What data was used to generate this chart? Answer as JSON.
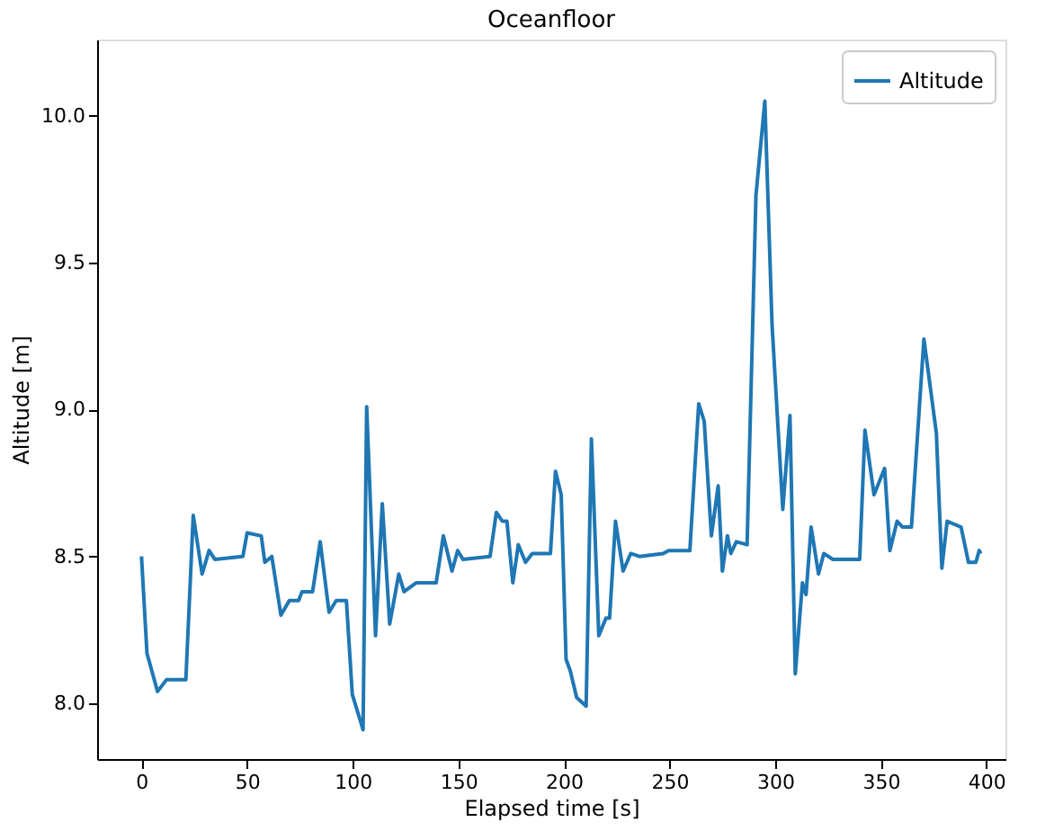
{
  "chart_data": {
    "type": "line",
    "title": "Oceanfloor",
    "xlabel": "Elapsed time [s]",
    "ylabel": "Altitude [m]",
    "x": [
      0,
      2.6,
      7.6,
      11.8,
      21,
      24.5,
      28.7,
      32,
      34.7,
      48,
      50,
      56.7,
      58.4,
      61.7,
      66,
      70,
      74.4,
      76,
      81,
      84.6,
      88.8,
      92.2,
      97,
      99.8,
      104.9,
      106.6,
      110.8,
      114,
      117.5,
      121.8,
      124.3,
      130,
      139.5,
      142.9,
      147,
      149.7,
      152.2,
      165,
      168,
      170.8,
      173,
      175.8,
      178.4,
      181.8,
      185,
      193.6,
      196,
      198.7,
      201,
      203,
      206,
      210.5,
      213,
      216.5,
      219.9,
      221.6,
      224.4,
      228,
      231.6,
      235.7,
      247,
      249.5,
      259.6,
      263.8,
      266.4,
      269.8,
      273,
      275,
      277.4,
      279,
      281.6,
      286.7,
      290.9,
      295.1,
      298.5,
      303.6,
      307,
      309.5,
      312.9,
      314.6,
      317,
      320.5,
      323,
      327.3,
      340,
      342.5,
      346.8,
      351.8,
      354.3,
      357.7,
      360.3,
      364.5,
      370.4,
      376.3,
      378.9,
      381.4,
      388,
      391.5,
      395,
      396.6,
      397.4
    ],
    "series": [
      {
        "name": "Altitude",
        "color": "#1f77b4",
        "values": [
          8.5,
          8.17,
          8.04,
          8.08,
          8.08,
          8.64,
          8.44,
          8.52,
          8.49,
          8.5,
          8.58,
          8.57,
          8.48,
          8.5,
          8.3,
          8.35,
          8.35,
          8.38,
          8.38,
          8.55,
          8.31,
          8.35,
          8.35,
          8.03,
          7.91,
          9.01,
          8.23,
          8.68,
          8.27,
          8.44,
          8.38,
          8.41,
          8.41,
          8.57,
          8.45,
          8.52,
          8.49,
          8.5,
          8.65,
          8.62,
          8.62,
          8.41,
          8.54,
          8.48,
          8.51,
          8.51,
          8.79,
          8.71,
          8.15,
          8.11,
          8.02,
          7.99,
          8.9,
          8.23,
          8.29,
          8.29,
          8.62,
          8.45,
          8.51,
          8.5,
          8.51,
          8.52,
          8.52,
          9.02,
          8.96,
          8.57,
          8.74,
          8.45,
          8.57,
          8.51,
          8.55,
          8.54,
          9.73,
          10.05,
          9.29,
          8.66,
          8.98,
          8.1,
          8.41,
          8.37,
          8.6,
          8.44,
          8.51,
          8.49,
          8.49,
          8.93,
          8.71,
          8.8,
          8.52,
          8.62,
          8.6,
          8.6,
          9.24,
          8.92,
          8.46,
          8.62,
          8.6,
          8.48,
          8.48,
          8.52,
          8.51
        ]
      }
    ],
    "xlim": [
      -21,
      409
    ],
    "xticks": [
      0,
      50,
      100,
      150,
      200,
      250,
      300,
      350,
      400
    ],
    "ylim": [
      7.81,
      10.26
    ],
    "yticks": [
      {
        "value": 8,
        "label": "8.0"
      },
      {
        "value": 8.5,
        "label": "8.5"
      },
      {
        "value": 9,
        "label": "9.0"
      },
      {
        "value": 9.5,
        "label": "9.5"
      },
      {
        "value": 10,
        "label": "10.0"
      }
    ],
    "legend": "top right",
    "grid": false,
    "marker": "none",
    "line_style": "solid"
  }
}
